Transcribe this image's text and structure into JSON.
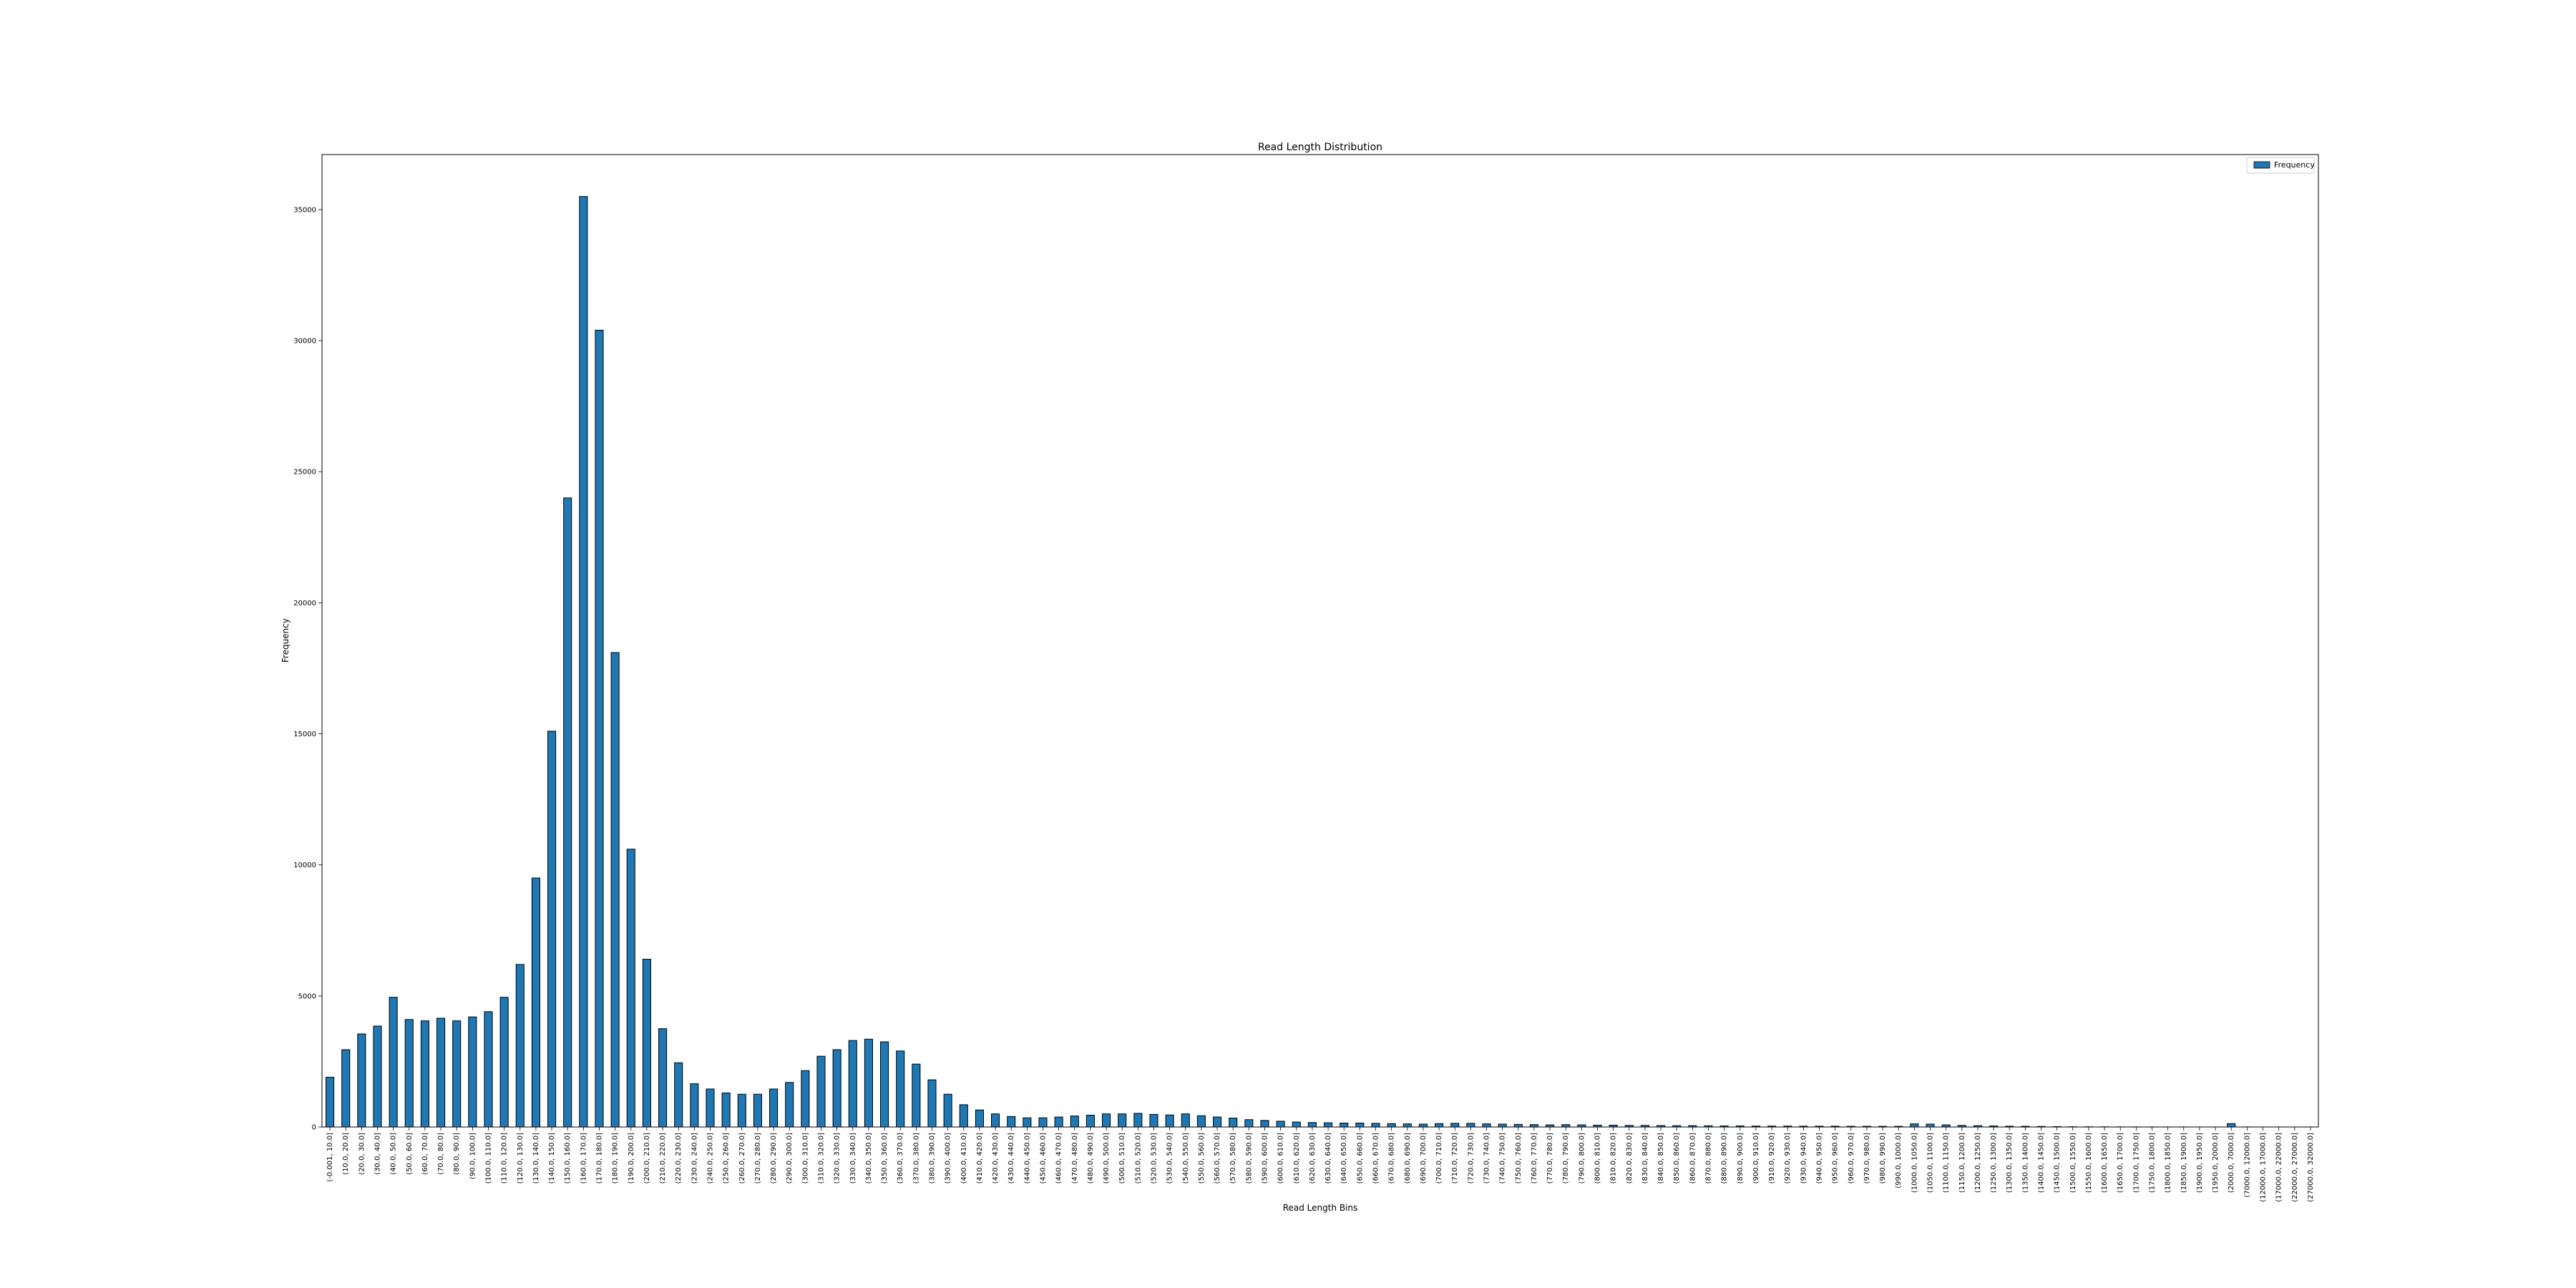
{
  "chart_data": {
    "type": "bar",
    "title": "Read Length Distribution",
    "xlabel": "Read Length Bins",
    "ylabel": "Frequency",
    "ylim": [
      0,
      37100
    ],
    "yticks": [
      0,
      5000,
      10000,
      15000,
      20000,
      25000,
      30000,
      35000
    ],
    "grid": false,
    "legend_position": "top-right",
    "bar_color": "#1f77b4",
    "bar_edge_color": "#000000",
    "categories": [
      "(-0.001, 10.0]",
      "(10.0, 20.0]",
      "(20.0, 30.0]",
      "(30.0, 40.0]",
      "(40.0, 50.0]",
      "(50.0, 60.0]",
      "(60.0, 70.0]",
      "(70.0, 80.0]",
      "(80.0, 90.0]",
      "(90.0, 100.0]",
      "(100.0, 110.0]",
      "(110.0, 120.0]",
      "(120.0, 130.0]",
      "(130.0, 140.0]",
      "(140.0, 150.0]",
      "(150.0, 160.0]",
      "(160.0, 170.0]",
      "(170.0, 180.0]",
      "(180.0, 190.0]",
      "(190.0, 200.0]",
      "(200.0, 210.0]",
      "(210.0, 220.0]",
      "(220.0, 230.0]",
      "(230.0, 240.0]",
      "(240.0, 250.0]",
      "(250.0, 260.0]",
      "(260.0, 270.0]",
      "(270.0, 280.0]",
      "(280.0, 290.0]",
      "(290.0, 300.0]",
      "(300.0, 310.0]",
      "(310.0, 320.0]",
      "(320.0, 330.0]",
      "(330.0, 340.0]",
      "(340.0, 350.0]",
      "(350.0, 360.0]",
      "(360.0, 370.0]",
      "(370.0, 380.0]",
      "(380.0, 390.0]",
      "(390.0, 400.0]",
      "(400.0, 410.0]",
      "(410.0, 420.0]",
      "(420.0, 430.0]",
      "(430.0, 440.0]",
      "(440.0, 450.0]",
      "(450.0, 460.0]",
      "(460.0, 470.0]",
      "(470.0, 480.0]",
      "(480.0, 490.0]",
      "(490.0, 500.0]",
      "(500.0, 510.0]",
      "(510.0, 520.0]",
      "(520.0, 530.0]",
      "(530.0, 540.0]",
      "(540.0, 550.0]",
      "(550.0, 560.0]",
      "(560.0, 570.0]",
      "(570.0, 580.0]",
      "(580.0, 590.0]",
      "(590.0, 600.0]",
      "(600.0, 610.0]",
      "(610.0, 620.0]",
      "(620.0, 630.0]",
      "(630.0, 640.0]",
      "(640.0, 650.0]",
      "(650.0, 660.0]",
      "(660.0, 670.0]",
      "(670.0, 680.0]",
      "(680.0, 690.0]",
      "(690.0, 700.0]",
      "(700.0, 710.0]",
      "(710.0, 720.0]",
      "(720.0, 730.0]",
      "(730.0, 740.0]",
      "(740.0, 750.0]",
      "(750.0, 760.0]",
      "(760.0, 770.0]",
      "(770.0, 780.0]",
      "(780.0, 790.0]",
      "(790.0, 800.0]",
      "(800.0, 810.0]",
      "(810.0, 820.0]",
      "(820.0, 830.0]",
      "(830.0, 840.0]",
      "(840.0, 850.0]",
      "(850.0, 860.0]",
      "(860.0, 870.0]",
      "(870.0, 880.0]",
      "(880.0, 890.0]",
      "(890.0, 900.0]",
      "(900.0, 910.0]",
      "(910.0, 920.0]",
      "(920.0, 930.0]",
      "(930.0, 940.0]",
      "(940.0, 950.0]",
      "(950.0, 960.0]",
      "(960.0, 970.0]",
      "(970.0, 980.0]",
      "(980.0, 990.0]",
      "(990.0, 1000.0]",
      "(1000.0, 1050.0]",
      "(1050.0, 1100.0]",
      "(1100.0, 1150.0]",
      "(1150.0, 1200.0]",
      "(1200.0, 1250.0]",
      "(1250.0, 1300.0]",
      "(1300.0, 1350.0]",
      "(1350.0, 1400.0]",
      "(1400.0, 1450.0]",
      "(1450.0, 1500.0]",
      "(1500.0, 1550.0]",
      "(1550.0, 1600.0]",
      "(1600.0, 1650.0]",
      "(1650.0, 1700.0]",
      "(1700.0, 1750.0]",
      "(1750.0, 1800.0]",
      "(1800.0, 1850.0]",
      "(1850.0, 1900.0]",
      "(1900.0, 1950.0]",
      "(1950.0, 2000.0]",
      "(2000.0, 7000.0]",
      "(7000.0, 12000.0]",
      "(12000.0, 17000.0]",
      "(17000.0, 22000.0]",
      "(22000.0, 27000.0]",
      "(27000.0, 32000.0]"
    ],
    "series": [
      {
        "name": "Frequency",
        "values": [
          1900,
          2950,
          3550,
          3850,
          4950,
          4100,
          4050,
          4150,
          4050,
          4200,
          4400,
          4950,
          6200,
          9500,
          15100,
          24000,
          35500,
          30400,
          18100,
          10600,
          6400,
          3750,
          2450,
          1650,
          1450,
          1300,
          1250,
          1250,
          1450,
          1700,
          2150,
          2700,
          2950,
          3300,
          3350,
          3250,
          2900,
          2400,
          1800,
          1250,
          850,
          650,
          500,
          400,
          350,
          350,
          380,
          420,
          450,
          500,
          500,
          520,
          480,
          460,
          500,
          430,
          380,
          340,
          280,
          250,
          220,
          190,
          170,
          160,
          150,
          150,
          140,
          130,
          120,
          110,
          130,
          140,
          140,
          120,
          110,
          100,
          90,
          80,
          90,
          80,
          70,
          70,
          60,
          60,
          55,
          50,
          50,
          45,
          40,
          40,
          35,
          35,
          35,
          30,
          30,
          30,
          25,
          25,
          25,
          25,
          120,
          110,
          80,
          60,
          50,
          40,
          30,
          25,
          20,
          15,
          10,
          8,
          6,
          5,
          4,
          3,
          2,
          2,
          1,
          1,
          130,
          3,
          1,
          1,
          0,
          1
        ]
      }
    ]
  }
}
